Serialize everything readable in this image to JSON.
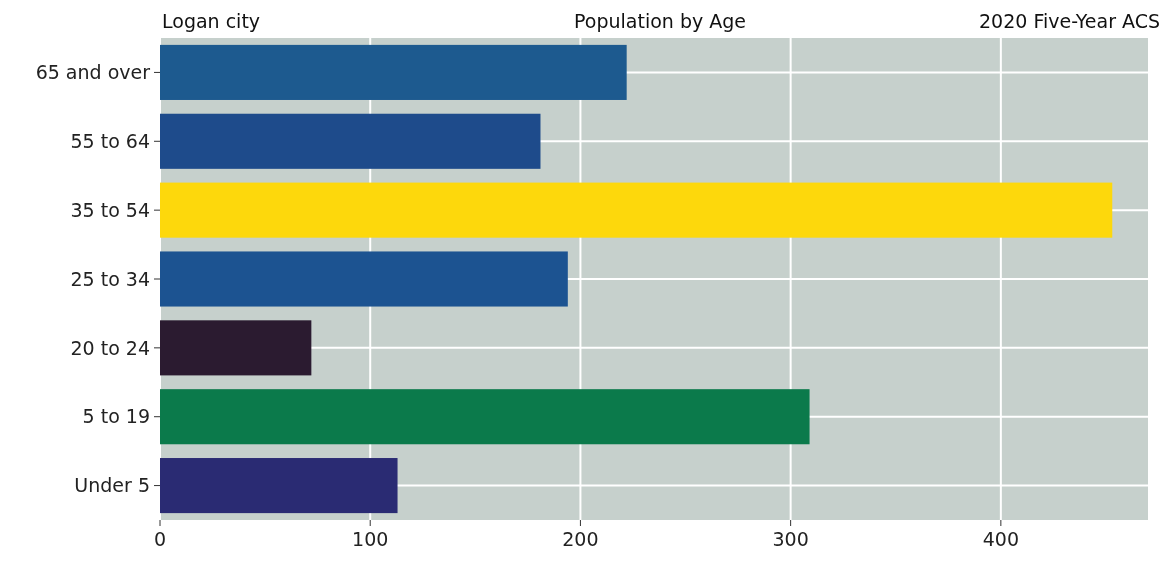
{
  "chart_data": {
    "type": "bar",
    "orientation": "horizontal",
    "title": "Population by Age",
    "subtitle": "Logan city",
    "annotations": [
      "2020 Five-Year ACS"
    ],
    "categories": [
      "65 and over",
      "55 to 64",
      "35 to 54",
      "25 to 34",
      "20 to 24",
      "5 to 19",
      "Under 5"
    ],
    "values": [
      222,
      181,
      453,
      194,
      72,
      309,
      113
    ],
    "colors": [
      "#1d5a8f",
      "#1e4b8b",
      "#fdd80c",
      "#1c5391",
      "#2b1b30",
      "#0b7a4b",
      "#2a2b73"
    ],
    "xlim": [
      0,
      470
    ],
    "xticks": [
      0,
      100,
      200,
      300,
      400
    ],
    "grid": true
  }
}
